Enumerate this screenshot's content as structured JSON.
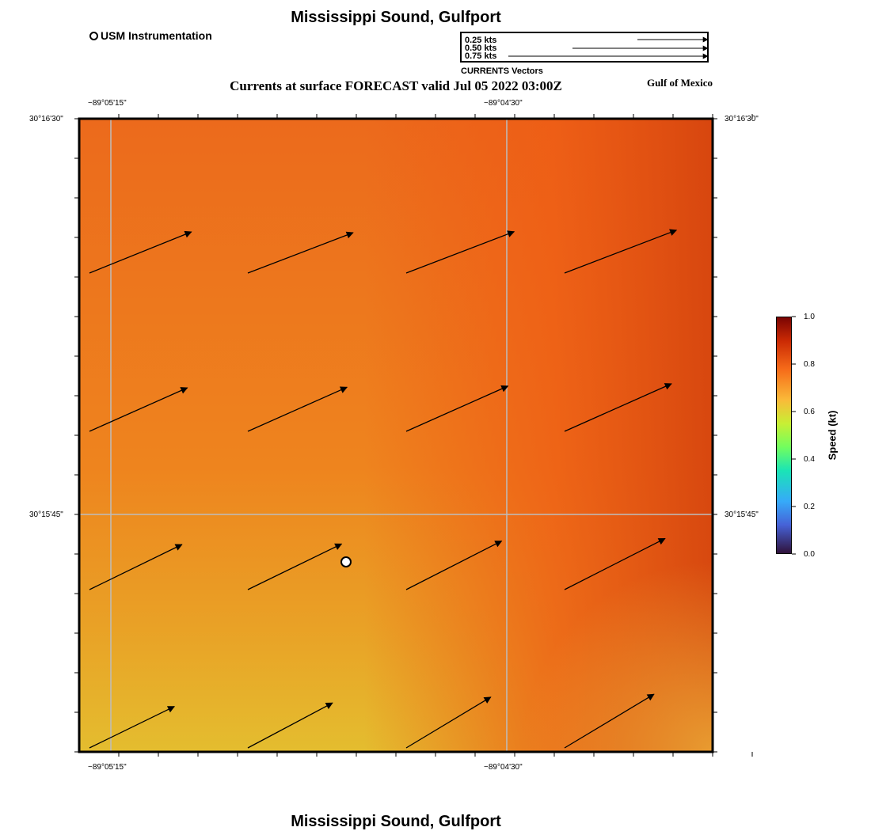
{
  "header": {
    "title": "Mississippi Sound, Gulfport",
    "subtitle": "Currents at surface FORECAST valid Jul 05 2022 03:00Z",
    "region": "Gulf of Mexico"
  },
  "legend": {
    "usm_label": "USM Instrumentation",
    "vector_scale": {
      "caption": "CURRENTS Vectors",
      "entries": [
        "0.25 kts",
        "0.50 kts",
        "0.75 kts"
      ]
    }
  },
  "map": {
    "lon_labels": [
      "−89°05'15\"",
      "−89°04'30\""
    ],
    "lat_labels": [
      "30°16'30\"",
      "30°15'45\""
    ],
    "current_vectors": [
      {
        "row": 1,
        "col": 1,
        "speed_kts": 0.78,
        "direction_deg": 68
      },
      {
        "row": 1,
        "col": 2,
        "speed_kts": 0.8,
        "direction_deg": 69
      },
      {
        "row": 1,
        "col": 3,
        "speed_kts": 0.82,
        "direction_deg": 69
      },
      {
        "row": 1,
        "col": 4,
        "speed_kts": 0.85,
        "direction_deg": 69
      },
      {
        "row": 2,
        "col": 1,
        "speed_kts": 0.76,
        "direction_deg": 66
      },
      {
        "row": 2,
        "col": 2,
        "speed_kts": 0.77,
        "direction_deg": 66
      },
      {
        "row": 2,
        "col": 3,
        "speed_kts": 0.79,
        "direction_deg": 66
      },
      {
        "row": 2,
        "col": 4,
        "speed_kts": 0.83,
        "direction_deg": 66
      },
      {
        "row": 3,
        "col": 1,
        "speed_kts": 0.73,
        "direction_deg": 64
      },
      {
        "row": 3,
        "col": 2,
        "speed_kts": 0.74,
        "direction_deg": 64
      },
      {
        "row": 3,
        "col": 3,
        "speed_kts": 0.76,
        "direction_deg": 63
      },
      {
        "row": 3,
        "col": 4,
        "speed_kts": 0.8,
        "direction_deg": 63
      },
      {
        "row": 4,
        "col": 1,
        "speed_kts": 0.67,
        "direction_deg": 64
      },
      {
        "row": 4,
        "col": 2,
        "speed_kts": 0.68,
        "direction_deg": 62
      },
      {
        "row": 4,
        "col": 3,
        "speed_kts": 0.7,
        "direction_deg": 59
      },
      {
        "row": 4,
        "col": 4,
        "speed_kts": 0.74,
        "direction_deg": 59
      }
    ]
  },
  "colorbar": {
    "title": "Speed (kt)",
    "ticks": [
      "0.0",
      "0.2",
      "0.4",
      "0.6",
      "0.8",
      "1.0"
    ]
  },
  "footer": {
    "title": "Mississippi Sound, Gulfport"
  }
}
